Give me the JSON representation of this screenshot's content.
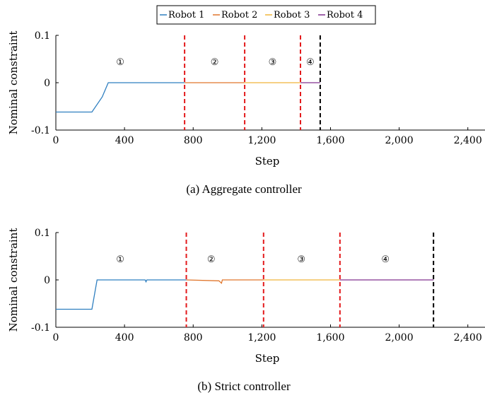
{
  "legend": {
    "items": [
      {
        "label": "Robot 1",
        "color": "#2f7fc0"
      },
      {
        "label": "Robot 2",
        "color": "#e0762c"
      },
      {
        "label": "Robot 3",
        "color": "#f0b53a"
      },
      {
        "label": "Robot 4",
        "color": "#80308f"
      }
    ]
  },
  "chart_data": [
    {
      "type": "line",
      "caption": "(a) Aggregate controller",
      "xlabel": "Step",
      "ylabel": "Nominal constraint",
      "xlim": [
        0,
        2500
      ],
      "ylim": [
        -0.1,
        0.1
      ],
      "xticks": [
        0,
        400,
        800,
        1200,
        1600,
        2000,
        2400
      ],
      "xtick_labels": [
        "0",
        "400",
        "800",
        "1,200",
        "1,600",
        "2,000",
        "2,400"
      ],
      "yticks": [
        -0.1,
        0,
        0.1
      ],
      "ytick_labels": [
        "-0.1",
        "0",
        "0.1"
      ],
      "phase_boundaries": [
        750,
        1100,
        1425
      ],
      "end_marker": 1540,
      "phase_labels": [
        {
          "text": "①",
          "x": 375
        },
        {
          "text": "②",
          "x": 925
        },
        {
          "text": "③",
          "x": 1262
        },
        {
          "text": "④",
          "x": 1482
        }
      ],
      "series": [
        {
          "name": "Robot 1",
          "x": [
            0,
            210,
            270,
            305,
            750
          ],
          "y": [
            -0.062,
            -0.062,
            -0.03,
            0,
            0
          ]
        },
        {
          "name": "Robot 2",
          "x": [
            750,
            1100
          ],
          "y": [
            0,
            0
          ]
        },
        {
          "name": "Robot 3",
          "x": [
            1100,
            1425
          ],
          "y": [
            0,
            0
          ]
        },
        {
          "name": "Robot 4",
          "x": [
            1425,
            1540
          ],
          "y": [
            0,
            0
          ]
        }
      ]
    },
    {
      "type": "line",
      "caption": "(b) Strict controller",
      "xlabel": "Step",
      "ylabel": "Nominal constraint",
      "xlim": [
        0,
        2500
      ],
      "ylim": [
        -0.1,
        0.1
      ],
      "xticks": [
        0,
        400,
        800,
        1200,
        1600,
        2000,
        2400
      ],
      "xtick_labels": [
        "0",
        "400",
        "800",
        "1,200",
        "1,600",
        "2,000",
        "2,400"
      ],
      "yticks": [
        -0.1,
        0,
        0.1
      ],
      "ytick_labels": [
        "-0.1",
        "0",
        "0.1"
      ],
      "phase_boundaries": [
        760,
        1210,
        1655
      ],
      "end_marker": 2200,
      "phase_labels": [
        {
          "text": "①",
          "x": 375
        },
        {
          "text": "②",
          "x": 905
        },
        {
          "text": "③",
          "x": 1430
        },
        {
          "text": "④",
          "x": 1920
        }
      ],
      "series": [
        {
          "name": "Robot 1",
          "x": [
            0,
            210,
            240,
            520,
            525,
            530,
            760
          ],
          "y": [
            -0.062,
            -0.062,
            0,
            0,
            -0.004,
            0,
            0
          ]
        },
        {
          "name": "Robot 2",
          "x": [
            760,
            950,
            965,
            970,
            1210
          ],
          "y": [
            0,
            -0.002,
            -0.007,
            0,
            0
          ]
        },
        {
          "name": "Robot 3",
          "x": [
            1210,
            1655
          ],
          "y": [
            0,
            0
          ]
        },
        {
          "name": "Robot 4",
          "x": [
            1655,
            2200
          ],
          "y": [
            0,
            0
          ]
        }
      ]
    }
  ]
}
